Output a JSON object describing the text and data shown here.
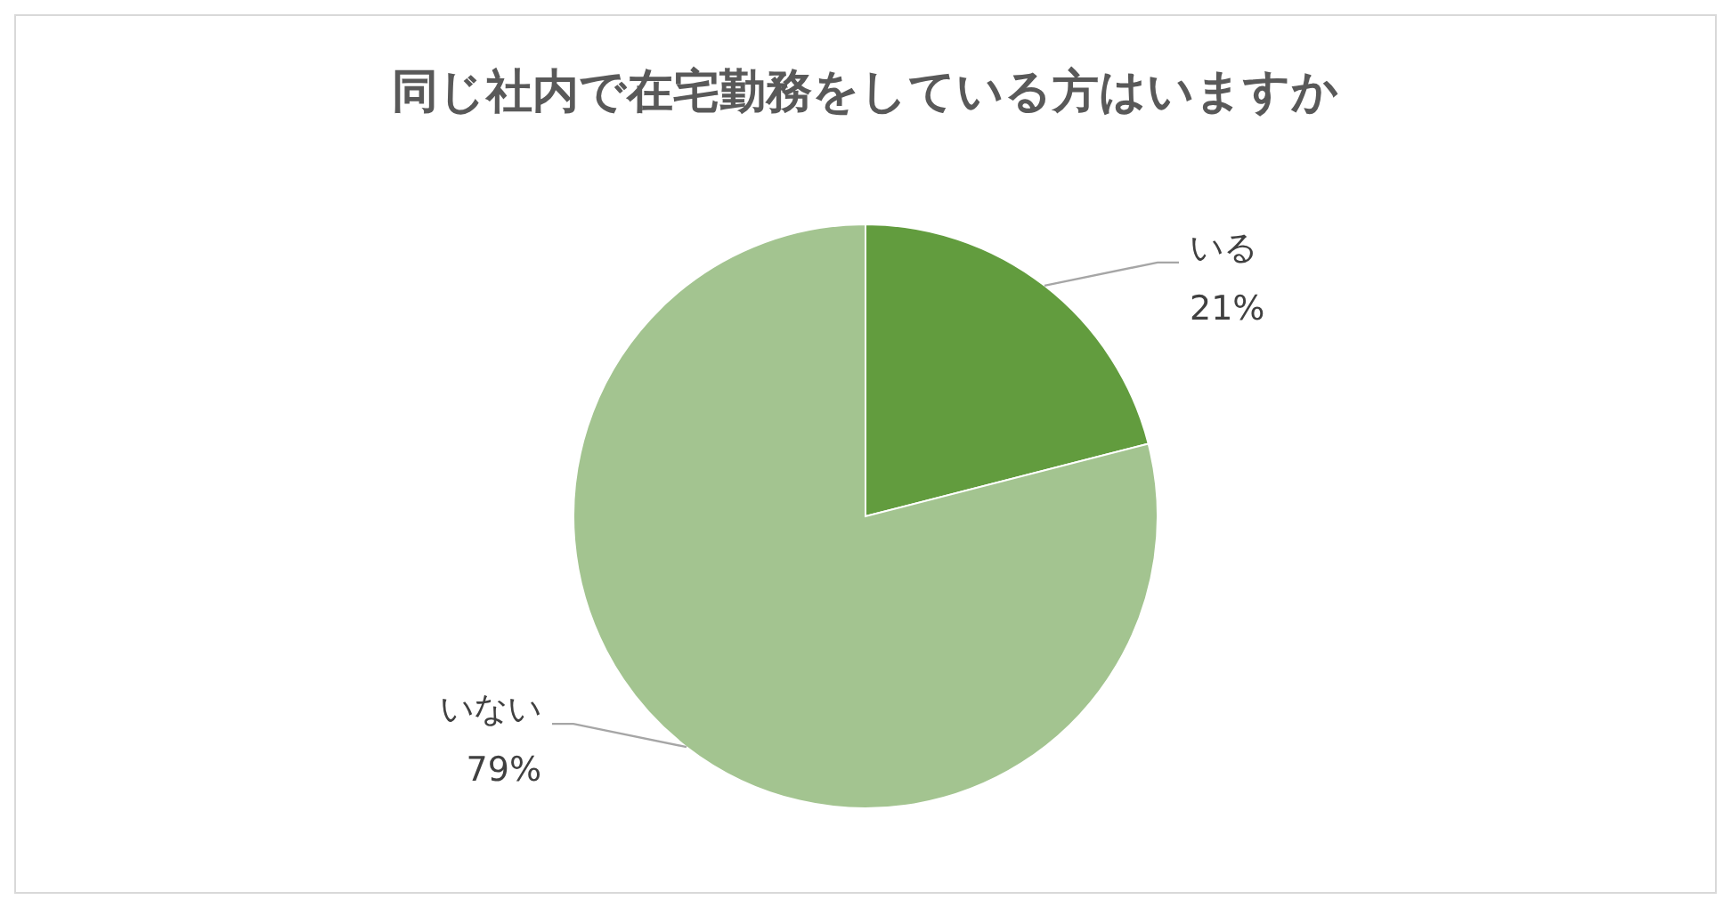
{
  "chart_data": {
    "type": "pie",
    "title": "同じ社内で在宅勤務をしている方はいますか",
    "categories": [
      "いる",
      "いない"
    ],
    "values": [
      21,
      79
    ],
    "colors": [
      "#629c3e",
      "#a3c490"
    ],
    "value_labels": [
      "21%",
      "79%"
    ]
  }
}
